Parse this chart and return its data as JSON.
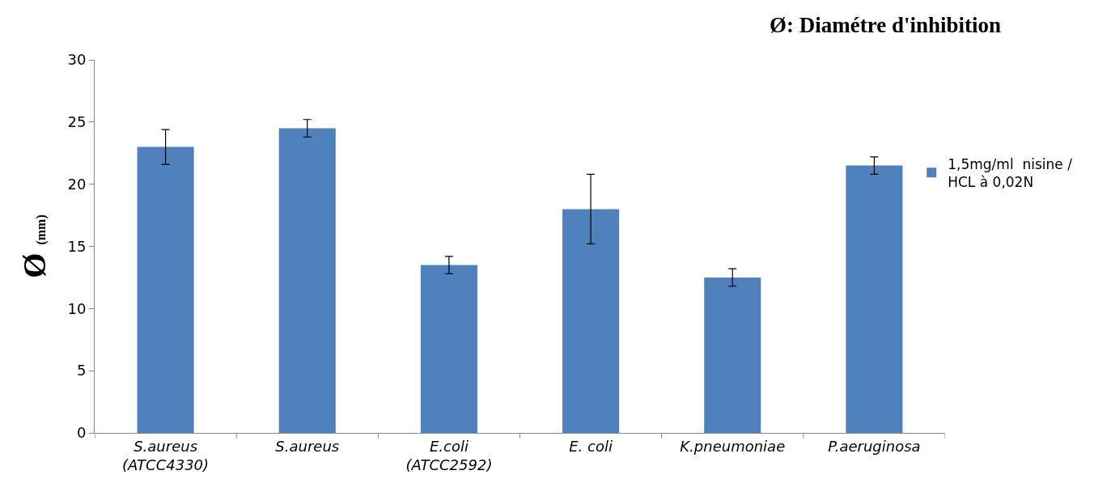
{
  "chart_data": {
    "type": "bar",
    "title": "Ø: Diamétre d'inhibition",
    "ylabel": "Ø (mm)",
    "categories": [
      "S.aureus\n(ATCC4330)",
      "S.aureus",
      "E.coli\n(ATCC2592)",
      "E. coli",
      "K.pneumoniae",
      "P.aeruginosa"
    ],
    "series": [
      {
        "name": "1,5mg/ml  nisine /\nHCL à 0,02N",
        "color": "#4f81bd",
        "values": [
          23.0,
          24.5,
          13.5,
          18.0,
          12.5,
          21.5
        ],
        "errors": [
          1.4,
          0.7,
          0.7,
          2.8,
          0.7,
          0.7
        ]
      }
    ],
    "ylim": [
      0,
      30
    ],
    "yticks": [
      0,
      5,
      10,
      15,
      20,
      25,
      30
    ],
    "grid": false,
    "legend": "right"
  }
}
